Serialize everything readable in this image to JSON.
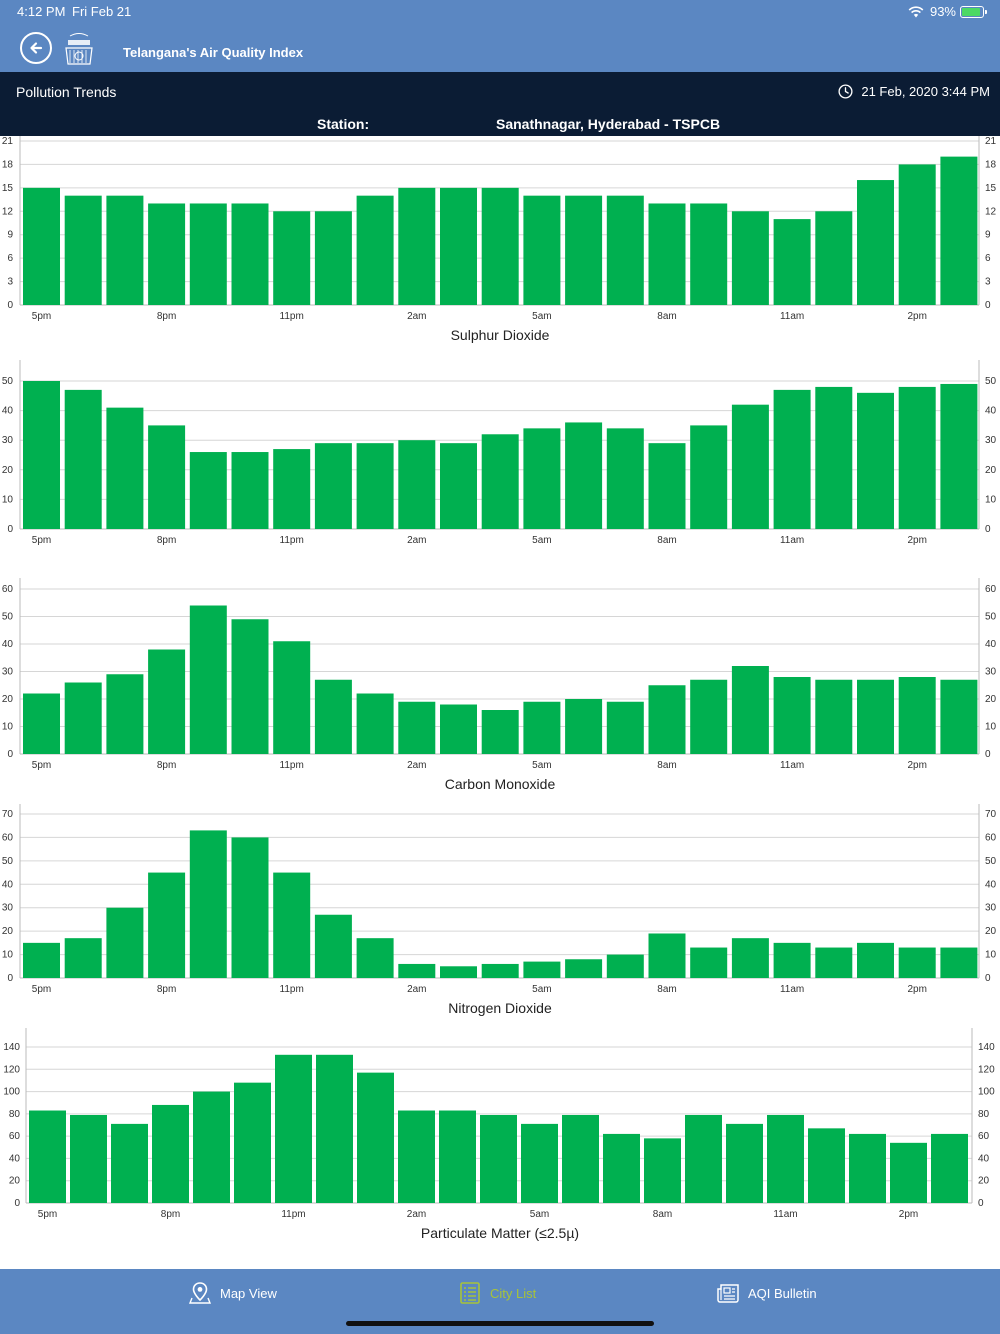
{
  "status": {
    "time": "4:12 PM",
    "date": "Fri Feb 21",
    "battery": "93%"
  },
  "app": {
    "title": "Telangana's Air Quality Index"
  },
  "header": {
    "page_title": "Pollution Trends",
    "timestamp": "21 Feb, 2020 3:44 PM",
    "station_label": "Station:",
    "station_value": "Sanathnagar, Hyderabad - TSPCB"
  },
  "colors": {
    "header": "#5b87c2",
    "titlebar": "#0b1c34",
    "bar": "#00b050",
    "active_tab": "#a7c33a"
  },
  "chart_data": [
    {
      "type": "bar",
      "title": "Sulphur Dioxide",
      "x_ticks": [
        "5pm",
        "8pm",
        "11pm",
        "2am",
        "5am",
        "8am",
        "11am",
        "2pm"
      ],
      "ylim": [
        0,
        21
      ],
      "y_ticks": [
        0,
        3,
        6,
        9,
        12,
        15,
        18,
        21
      ],
      "values": [
        15,
        14,
        14,
        13,
        13,
        13,
        12,
        12,
        14,
        15,
        15,
        15,
        14,
        14,
        14,
        13,
        13,
        12,
        11,
        12,
        16,
        18,
        19
      ]
    },
    {
      "type": "bar",
      "title": "",
      "x_ticks": [
        "5pm",
        "8pm",
        "11pm",
        "2am",
        "5am",
        "8am",
        "11am",
        "2pm"
      ],
      "ylim": [
        0,
        50
      ],
      "y_ticks": [
        0,
        10,
        20,
        30,
        40,
        50
      ],
      "values": [
        50,
        47,
        41,
        35,
        26,
        26,
        27,
        29,
        29,
        30,
        29,
        32,
        34,
        36,
        34,
        29,
        35,
        42,
        47,
        48,
        46,
        48,
        49
      ]
    },
    {
      "type": "bar",
      "title": "Carbon Monoxide",
      "x_ticks": [
        "5pm",
        "8pm",
        "11pm",
        "2am",
        "5am",
        "8am",
        "11am",
        "2pm"
      ],
      "ylim": [
        0,
        60
      ],
      "y_ticks": [
        0,
        10,
        20,
        30,
        40,
        50,
        60
      ],
      "values": [
        22,
        26,
        29,
        38,
        54,
        49,
        41,
        27,
        22,
        19,
        18,
        16,
        19,
        20,
        19,
        25,
        27,
        32,
        28,
        27,
        27,
        28,
        27
      ]
    },
    {
      "type": "bar",
      "title": "Nitrogen Dioxide",
      "x_ticks": [
        "5pm",
        "8pm",
        "11pm",
        "2am",
        "5am",
        "8am",
        "11am",
        "2pm"
      ],
      "ylim": [
        0,
        70
      ],
      "y_ticks": [
        0,
        10,
        20,
        30,
        40,
        50,
        60,
        70
      ],
      "values": [
        15,
        17,
        30,
        45,
        63,
        60,
        45,
        27,
        17,
        6,
        5,
        6,
        7,
        8,
        10,
        19,
        13,
        17,
        15,
        13,
        15,
        13,
        13
      ]
    },
    {
      "type": "bar",
      "title": "Particulate Matter (≤2.5µ)",
      "x_ticks": [
        "5pm",
        "8pm",
        "11pm",
        "2am",
        "5am",
        "8am",
        "11am",
        "2pm"
      ],
      "ylim": [
        0,
        140
      ],
      "y_ticks": [
        0,
        20,
        40,
        60,
        80,
        100,
        120,
        140
      ],
      "values": [
        83,
        79,
        71,
        88,
        100,
        108,
        133,
        133,
        117,
        83,
        83,
        79,
        71,
        79,
        62,
        58,
        79,
        71,
        79,
        67,
        62,
        54,
        62
      ]
    }
  ],
  "tabs": [
    {
      "label": "Map View",
      "icon": "map-pin-icon"
    },
    {
      "label": "City List",
      "icon": "list-icon"
    },
    {
      "label": "AQI Bulletin",
      "icon": "newspaper-icon"
    }
  ]
}
